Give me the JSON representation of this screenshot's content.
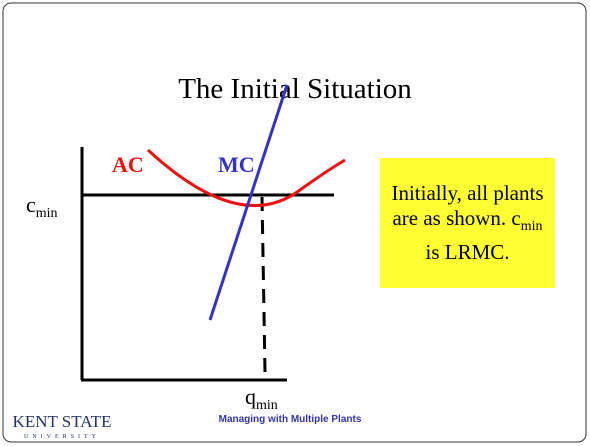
{
  "title": "The Initial Situation",
  "curves": {
    "ac": "AC",
    "mc": "MC"
  },
  "axis_labels": {
    "c": {
      "base": "c",
      "sub": "min"
    },
    "q": {
      "base": "q",
      "sub": "min"
    }
  },
  "callout": {
    "before": "Initially, all plants are as shown. ",
    "base": "c",
    "sub": "min",
    "after": " is LRMC."
  },
  "footer": "Managing with Multiple Plants",
  "logo": {
    "name": "KENT STATE",
    "sub": "UNIVERSITY"
  }
}
